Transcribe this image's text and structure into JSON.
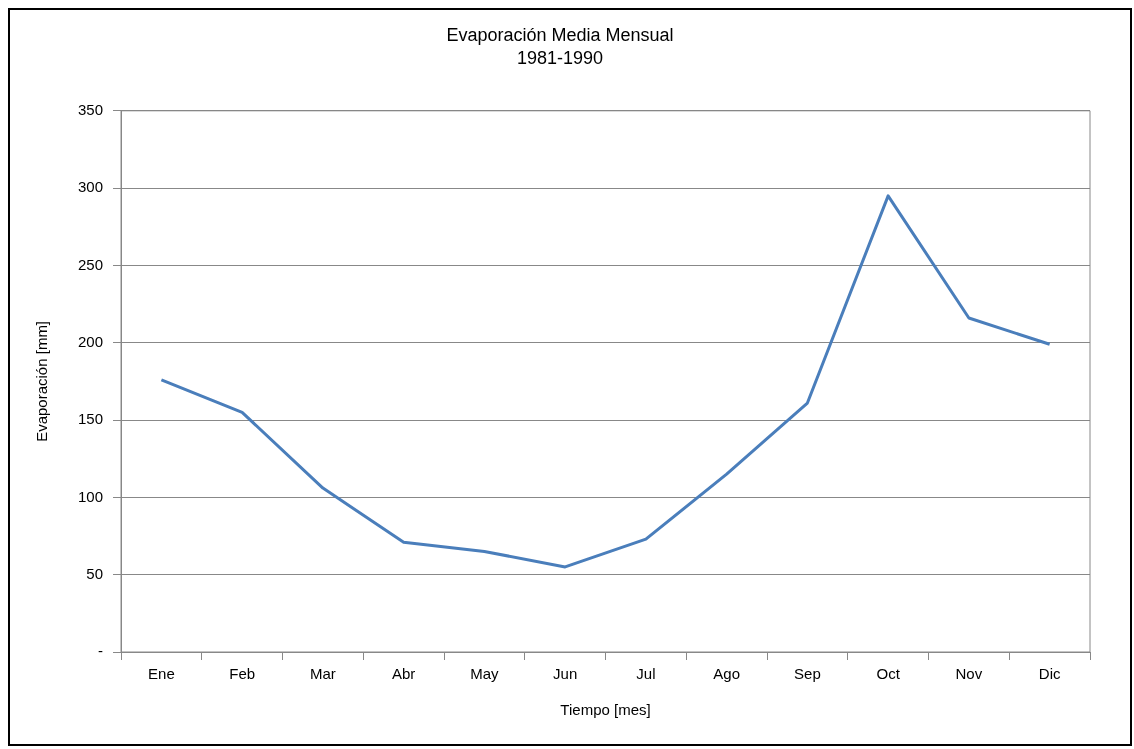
{
  "chart_data": {
    "type": "line",
    "title": "Evaporación Media Mensual",
    "subtitle": "1981-1990",
    "xlabel": "Tiempo [mes]",
    "ylabel": "Evaporación [mm]",
    "categories": [
      "Ene",
      "Feb",
      "Mar",
      "Abr",
      "May",
      "Jun",
      "Jul",
      "Ago",
      "Sep",
      "Oct",
      "Nov",
      "Dic"
    ],
    "series": [
      {
        "color": "#4a7ebb",
        "values": [
          176,
          155,
          106,
          71,
          65,
          55,
          73,
          115,
          161,
          295,
          216,
          199
        ]
      }
    ],
    "ylim": [
      0,
      350
    ],
    "yticks": [
      {
        "value": 0,
        "label": "-"
      },
      50,
      100,
      150,
      200,
      250,
      300,
      350
    ],
    "grid": "y",
    "legend": false,
    "marker": "none",
    "line_style": "solid"
  }
}
